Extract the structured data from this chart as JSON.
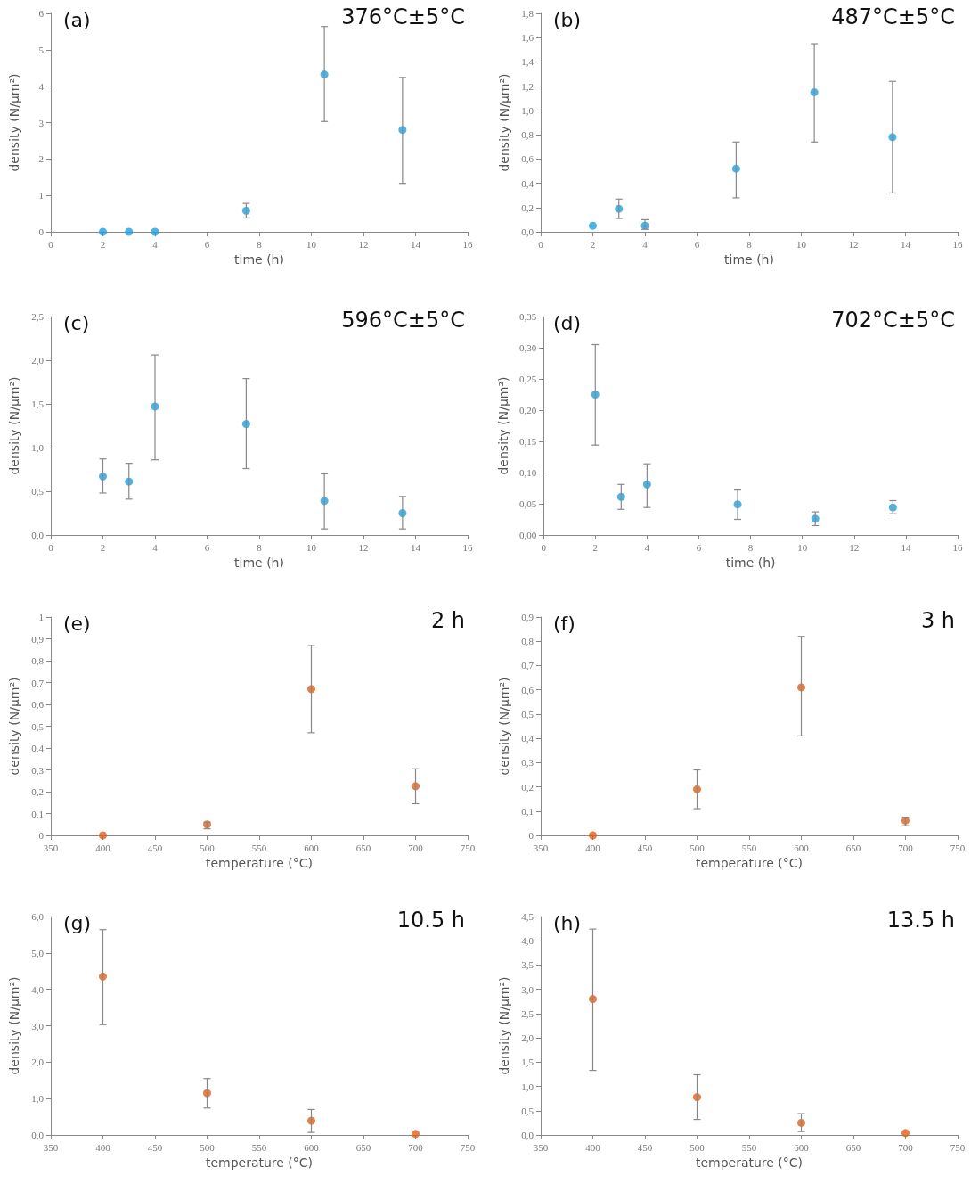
{
  "chart_data": [
    {
      "type": "scatter",
      "title": "376°C±5°C",
      "annotations": [
        "(a)"
      ],
      "xlabel": "time (h)",
      "ylabel": "density (N/µm²)",
      "marker": "circle",
      "x": [
        2,
        3,
        4,
        7.5,
        10.5,
        13.5
      ],
      "xlim": [
        0,
        16
      ],
      "xticks": [
        0,
        2,
        4,
        6,
        8,
        10,
        12,
        14,
        16
      ],
      "ylim": [
        0,
        6
      ],
      "yticks": [
        0,
        1,
        2,
        3,
        4,
        5,
        6
      ],
      "series": [
        {
          "color": "#1ea0e0",
          "values": [
            0,
            0,
            0,
            0.58,
            4.32,
            2.8
          ],
          "errors": [
            null,
            null,
            null,
            [
              0.38,
              0.78
            ],
            [
              3.03,
              5.64
            ],
            [
              1.33,
              4.24
            ]
          ]
        }
      ]
    },
    {
      "type": "scatter",
      "title": "487°C±5°C",
      "annotations": [
        "(b)"
      ],
      "xlabel": "time (h)",
      "ylabel": "density (N/µm²)",
      "marker": "circle",
      "x": [
        2,
        3,
        4,
        7.5,
        10.5,
        13.5
      ],
      "xlim": [
        0,
        16
      ],
      "xticks": [
        0,
        2,
        4,
        6,
        8,
        10,
        12,
        14,
        16
      ],
      "ylim": [
        0,
        1.8
      ],
      "yticks": [
        {
          "value": 0,
          "label": "0,0"
        },
        {
          "value": 0.2,
          "label": "0,2"
        },
        {
          "value": 0.4,
          "label": "0,4"
        },
        {
          "value": 0.6,
          "label": "0,6"
        },
        {
          "value": 0.8,
          "label": "0,8"
        },
        {
          "value": 1,
          "label": "1,0"
        },
        {
          "value": 1.2,
          "label": "1,2"
        },
        {
          "value": 1.4,
          "label": "1,4"
        },
        {
          "value": 1.6,
          "label": "1,6"
        },
        {
          "value": 1.8,
          "label": "1,8"
        }
      ],
      "series": [
        {
          "color": "#1ea0e0",
          "values": [
            0.05,
            0.19,
            0.05,
            0.52,
            1.15,
            0.78
          ],
          "errors": [
            null,
            [
              0.11,
              0.27
            ],
            [
              0.02,
              0.1
            ],
            [
              0.28,
              0.74
            ],
            [
              0.74,
              1.55
            ],
            [
              0.32,
              1.24
            ]
          ]
        }
      ]
    },
    {
      "type": "scatter",
      "title": "596°C±5°C",
      "annotations": [
        "(c)"
      ],
      "xlabel": "time (h)",
      "ylabel": "density (N/µm²)",
      "marker": "circle",
      "x": [
        2,
        3,
        4,
        7.5,
        10.5,
        13.5
      ],
      "xlim": [
        0,
        16
      ],
      "xticks": [
        0,
        2,
        4,
        6,
        8,
        10,
        12,
        14,
        16
      ],
      "ylim": [
        0,
        2.5
      ],
      "yticks": [
        {
          "value": 0,
          "label": "0,0"
        },
        {
          "value": 0.5,
          "label": "0,5"
        },
        {
          "value": 1,
          "label": "1,0"
        },
        {
          "value": 1.5,
          "label": "1,5"
        },
        {
          "value": 2,
          "label": "2,0"
        },
        {
          "value": 2.5,
          "label": "2,5"
        }
      ],
      "series": [
        {
          "color": "#1ea0e0",
          "values": [
            0.67,
            0.61,
            1.47,
            1.27,
            0.39,
            0.25
          ],
          "errors": [
            [
              0.48,
              0.87
            ],
            [
              0.41,
              0.82
            ],
            [
              0.86,
              2.06
            ],
            [
              0.76,
              1.79
            ],
            [
              0.07,
              0.7
            ],
            [
              0.07,
              0.44
            ]
          ]
        }
      ]
    },
    {
      "type": "scatter",
      "title": "702°C±5°C",
      "annotations": [
        "(d)"
      ],
      "xlabel": "time (h)",
      "ylabel": "density (N/µm²)",
      "marker": "circle",
      "x": [
        2,
        3,
        4,
        7.5,
        10.5,
        13.5
      ],
      "xlim": [
        0,
        16
      ],
      "xticks": [
        0,
        2,
        4,
        6,
        8,
        10,
        12,
        14,
        16
      ],
      "ylim": [
        0,
        0.35
      ],
      "yticks": [
        {
          "value": 0,
          "label": "0,00"
        },
        {
          "value": 0.05,
          "label": "0,05"
        },
        {
          "value": 0.1,
          "label": "0,10"
        },
        {
          "value": 0.15,
          "label": "0,15"
        },
        {
          "value": 0.2,
          "label": "0,20"
        },
        {
          "value": 0.25,
          "label": "0,25"
        },
        {
          "value": 0.3,
          "label": "0,30"
        },
        {
          "value": 0.35,
          "label": "0,35"
        }
      ],
      "series": [
        {
          "color": "#1ea0e0",
          "values": [
            0.225,
            0.061,
            0.081,
            0.049,
            0.026,
            0.044
          ],
          "errors": [
            [
              0.144,
              0.305
            ],
            [
              0.041,
              0.081
            ],
            [
              0.044,
              0.114
            ],
            [
              0.025,
              0.072
            ],
            [
              0.015,
              0.037
            ],
            [
              0.034,
              0.055
            ]
          ]
        }
      ]
    },
    {
      "type": "scatter",
      "title": "2 h",
      "annotations": [
        "(e)"
      ],
      "xlabel": "temperature (°C)",
      "ylabel": "density (N/µm²)",
      "marker": "circle",
      "x": [
        400,
        500,
        600,
        700
      ],
      "xlim": [
        350,
        750
      ],
      "xticks": [
        350,
        400,
        450,
        500,
        550,
        600,
        650,
        700,
        750
      ],
      "ylim": [
        0,
        1
      ],
      "yticks": [
        0,
        {
          "value": 0.1,
          "label": "0,1"
        },
        {
          "value": 0.2,
          "label": "0,2"
        },
        {
          "value": 0.3,
          "label": "0,3"
        },
        {
          "value": 0.4,
          "label": "0,4"
        },
        {
          "value": 0.5,
          "label": "0,5"
        },
        {
          "value": 0.6,
          "label": "0,6"
        },
        {
          "value": 0.7,
          "label": "0,7"
        },
        {
          "value": 0.8,
          "label": "0,8"
        },
        {
          "value": 0.9,
          "label": "0,9"
        },
        1
      ],
      "series": [
        {
          "color": "#e0601a",
          "values": [
            0,
            0.05,
            0.67,
            0.225
          ],
          "errors": [
            null,
            [
              0.03,
              0.06
            ],
            [
              0.47,
              0.87
            ],
            [
              0.145,
              0.305
            ]
          ]
        }
      ]
    },
    {
      "type": "scatter",
      "title": "3 h",
      "annotations": [
        "(f)"
      ],
      "xlabel": "temperature (°C)",
      "ylabel": "density (N/µm²)",
      "marker": "circle",
      "x": [
        400,
        500,
        600,
        700
      ],
      "xlim": [
        350,
        750
      ],
      "xticks": [
        350,
        400,
        450,
        500,
        550,
        600,
        650,
        700,
        750
      ],
      "ylim": [
        0,
        0.9
      ],
      "yticks": [
        0,
        {
          "value": 0.1,
          "label": "0,1"
        },
        {
          "value": 0.2,
          "label": "0,2"
        },
        {
          "value": 0.3,
          "label": "0,3"
        },
        {
          "value": 0.4,
          "label": "0,4"
        },
        {
          "value": 0.5,
          "label": "0,5"
        },
        {
          "value": 0.6,
          "label": "0,6"
        },
        {
          "value": 0.7,
          "label": "0,7"
        },
        {
          "value": 0.8,
          "label": "0,8"
        },
        {
          "value": 0.9,
          "label": "0,9"
        }
      ],
      "series": [
        {
          "color": "#e0601a",
          "values": [
            0,
            0.19,
            0.61,
            0.061
          ],
          "errors": [
            null,
            [
              0.11,
              0.27
            ],
            [
              0.41,
              0.82
            ],
            [
              0.04,
              0.075
            ]
          ]
        }
      ]
    },
    {
      "type": "scatter",
      "title": "10.5 h",
      "annotations": [
        "(g)"
      ],
      "xlabel": "temperature (°C)",
      "ylabel": "density (N/µm²)",
      "marker": "circle",
      "x": [
        400,
        500,
        600,
        700
      ],
      "xlim": [
        350,
        750
      ],
      "xticks": [
        350,
        400,
        450,
        500,
        550,
        600,
        650,
        700,
        750
      ],
      "ylim": [
        0,
        6
      ],
      "yticks": [
        {
          "value": 0,
          "label": "0,0"
        },
        {
          "value": 1,
          "label": "1,0"
        },
        {
          "value": 2,
          "label": "2,0"
        },
        {
          "value": 3,
          "label": "3,0"
        },
        {
          "value": 4,
          "label": "4,0"
        },
        {
          "value": 5,
          "label": "5,0"
        },
        {
          "value": 6,
          "label": "6,0"
        }
      ],
      "series": [
        {
          "color": "#e0601a",
          "values": [
            4.35,
            1.15,
            0.39,
            0.03
          ],
          "errors": [
            [
              3.03,
              5.64
            ],
            [
              0.74,
              1.55
            ],
            [
              0.07,
              0.7
            ],
            null
          ]
        }
      ]
    },
    {
      "type": "scatter",
      "title": "13.5 h",
      "annotations": [
        "(h)"
      ],
      "xlabel": "temperature (°C)",
      "ylabel": "density (N/µm²)",
      "marker": "circle",
      "x": [
        400,
        500,
        600,
        700
      ],
      "xlim": [
        350,
        750
      ],
      "xticks": [
        350,
        400,
        450,
        500,
        550,
        600,
        650,
        700,
        750
      ],
      "ylim": [
        0,
        4.5
      ],
      "yticks": [
        {
          "value": 0,
          "label": "0,0"
        },
        {
          "value": 0.5,
          "label": "0,5"
        },
        {
          "value": 1,
          "label": "1,0"
        },
        {
          "value": 1.5,
          "label": "1,5"
        },
        {
          "value": 2,
          "label": "2,0"
        },
        {
          "value": 2.5,
          "label": "2,5"
        },
        {
          "value": 3,
          "label": "3,0"
        },
        {
          "value": 3.5,
          "label": "3,5"
        },
        {
          "value": 4,
          "label": "4,0"
        },
        {
          "value": 4.5,
          "label": "4,5"
        }
      ],
      "series": [
        {
          "color": "#e0601a",
          "values": [
            2.8,
            0.78,
            0.25,
            0.04
          ],
          "errors": [
            [
              1.33,
              4.24
            ],
            [
              0.32,
              1.24
            ],
            [
              0.07,
              0.44
            ],
            null
          ]
        }
      ]
    }
  ]
}
